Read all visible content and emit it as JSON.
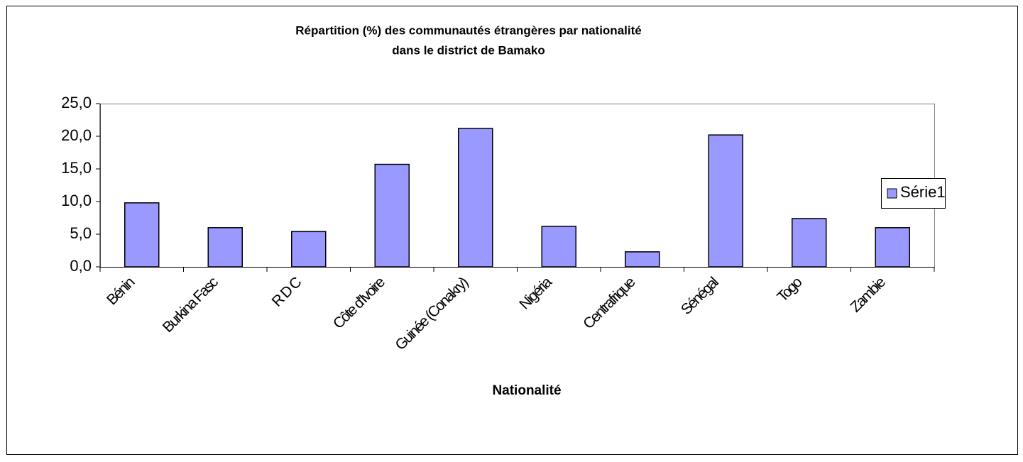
{
  "chart_data": {
    "type": "bar",
    "title": "Répartition (%) des communautés étrangères par nationalité",
    "subtitle": "dans le district de Bamako",
    "x_label": "Nationalité",
    "categories": [
      "Bénin",
      "Burkina Fasc",
      "R D C",
      "Côte d'Ivoire",
      "Guinée (Conakry)",
      "Nigéria",
      "Centrafrique",
      "Sénégal",
      "Togo",
      "Zambie"
    ],
    "series": [
      {
        "name": "Série1",
        "color": "#9999ff",
        "values": [
          9.8,
          6.0,
          5.4,
          15.7,
          21.2,
          6.2,
          2.3,
          20.2,
          7.4,
          6.0
        ]
      }
    ],
    "ylim": [
      0,
      25
    ],
    "yticks": [
      {
        "value": 0,
        "label": "0,0"
      },
      {
        "value": 5,
        "label": "5,0"
      },
      {
        "value": 10,
        "label": "10,0"
      },
      {
        "value": 15,
        "label": "15,0"
      },
      {
        "value": 20,
        "label": "20,0"
      },
      {
        "value": 25,
        "label": "25,0"
      }
    ],
    "legend": "right"
  }
}
